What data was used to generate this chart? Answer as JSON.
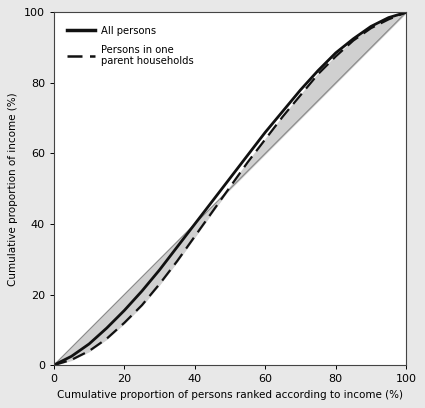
{
  "xlabel": "Cumulative proportion of persons ranked according to income (%)",
  "ylabel": "Cumulative proportion of income (%)",
  "xlim": [
    0,
    100
  ],
  "ylim": [
    0,
    100
  ],
  "xticks": [
    0,
    20,
    40,
    60,
    80,
    100
  ],
  "yticks": [
    0,
    20,
    40,
    60,
    80,
    100
  ],
  "plot_bg_color": "#ffffff",
  "fig_bg_color": "#e8e8e8",
  "fill_gray_color": "#d0d0d0",
  "legend_label_all": "All persons",
  "legend_label_oneparent": "Persons in one\nparent households",
  "equality_line_color": "#888888",
  "lorenz_all_color": "#111111",
  "lorenz_oneparent_color": "#111111",
  "lorenz_all_x": [
    0,
    5,
    10,
    15,
    20,
    25,
    30,
    35,
    40,
    45,
    50,
    55,
    60,
    65,
    70,
    75,
    80,
    85,
    90,
    95,
    100
  ],
  "lorenz_all_y": [
    0,
    2.5,
    6.0,
    10.5,
    15.5,
    21.0,
    27.0,
    33.5,
    40.0,
    46.5,
    53.0,
    59.5,
    66.0,
    72.0,
    78.0,
    83.5,
    88.5,
    92.5,
    96.0,
    98.5,
    100
  ],
  "lorenz_op_x": [
    0,
    5,
    10,
    15,
    20,
    25,
    30,
    35,
    40,
    45,
    50,
    55,
    60,
    65,
    70,
    75,
    80,
    85,
    90,
    95,
    100
  ],
  "lorenz_op_y": [
    0,
    1.5,
    4.0,
    7.5,
    12.0,
    17.0,
    23.0,
    29.5,
    36.5,
    43.5,
    50.5,
    57.5,
    64.0,
    70.5,
    76.5,
    82.5,
    87.5,
    92.0,
    95.5,
    98.0,
    100
  ]
}
